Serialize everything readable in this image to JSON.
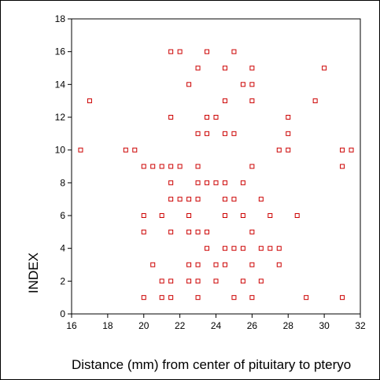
{
  "chart_data": {
    "type": "scatter",
    "xlabel": "Distance (mm) from center of pituitary to pteryo",
    "ylabel": "INDEX",
    "xlim": [
      16,
      32
    ],
    "ylim": [
      0,
      18
    ],
    "xticks": [
      "16",
      "18",
      "20",
      "22",
      "24",
      "26",
      "28",
      "30",
      "32"
    ],
    "yticks": [
      "0",
      "2",
      "4",
      "6",
      "8",
      "10",
      "12",
      "14",
      "16",
      "18"
    ],
    "marker_color": "#cc0000",
    "marker": "open-square",
    "grid": false,
    "points": [
      [
        20,
        1
      ],
      [
        21,
        1
      ],
      [
        21.5,
        1
      ],
      [
        23,
        1
      ],
      [
        25,
        1
      ],
      [
        26,
        1
      ],
      [
        29,
        1
      ],
      [
        31,
        1
      ],
      [
        21,
        2
      ],
      [
        21.5,
        2
      ],
      [
        22.5,
        2
      ],
      [
        23,
        2
      ],
      [
        24,
        2
      ],
      [
        25.5,
        2
      ],
      [
        26.5,
        2
      ],
      [
        20.5,
        3
      ],
      [
        22.5,
        3
      ],
      [
        23,
        3
      ],
      [
        24,
        3
      ],
      [
        24.5,
        3
      ],
      [
        26,
        3
      ],
      [
        27.5,
        3
      ],
      [
        23.5,
        4
      ],
      [
        24.5,
        4
      ],
      [
        25,
        4
      ],
      [
        25.5,
        4
      ],
      [
        26.5,
        4
      ],
      [
        27,
        4
      ],
      [
        27.5,
        4
      ],
      [
        20,
        5
      ],
      [
        21.5,
        5
      ],
      [
        22.5,
        5
      ],
      [
        23,
        5
      ],
      [
        23.5,
        5
      ],
      [
        26,
        5
      ],
      [
        20,
        6
      ],
      [
        21,
        6
      ],
      [
        22.5,
        6
      ],
      [
        24.5,
        6
      ],
      [
        25.5,
        6
      ],
      [
        27,
        6
      ],
      [
        28.5,
        6
      ],
      [
        21.5,
        7
      ],
      [
        22,
        7
      ],
      [
        22.5,
        7
      ],
      [
        23,
        7
      ],
      [
        24.5,
        7
      ],
      [
        25,
        7
      ],
      [
        26.5,
        7
      ],
      [
        21.5,
        8
      ],
      [
        23,
        8
      ],
      [
        23.5,
        8
      ],
      [
        24,
        8
      ],
      [
        24.5,
        8
      ],
      [
        25.5,
        8
      ],
      [
        20,
        9
      ],
      [
        20.5,
        9
      ],
      [
        21,
        9
      ],
      [
        21.5,
        9
      ],
      [
        22,
        9
      ],
      [
        23,
        9
      ],
      [
        26,
        9
      ],
      [
        31,
        9
      ],
      [
        16.5,
        10
      ],
      [
        19,
        10
      ],
      [
        19.5,
        10
      ],
      [
        27.5,
        10
      ],
      [
        28,
        10
      ],
      [
        31,
        10
      ],
      [
        31.5,
        10
      ],
      [
        23,
        11
      ],
      [
        23.5,
        11
      ],
      [
        24.5,
        11
      ],
      [
        25,
        11
      ],
      [
        28,
        11
      ],
      [
        21.5,
        12
      ],
      [
        23.5,
        12
      ],
      [
        24,
        12
      ],
      [
        28,
        12
      ],
      [
        17,
        13
      ],
      [
        24.5,
        13
      ],
      [
        26,
        13
      ],
      [
        29.5,
        13
      ],
      [
        22.5,
        14
      ],
      [
        25.5,
        14
      ],
      [
        26,
        14
      ],
      [
        23,
        15
      ],
      [
        24.5,
        15
      ],
      [
        26,
        15
      ],
      [
        30,
        15
      ],
      [
        21.5,
        16
      ],
      [
        22,
        16
      ],
      [
        23.5,
        16
      ],
      [
        25,
        16
      ]
    ]
  }
}
